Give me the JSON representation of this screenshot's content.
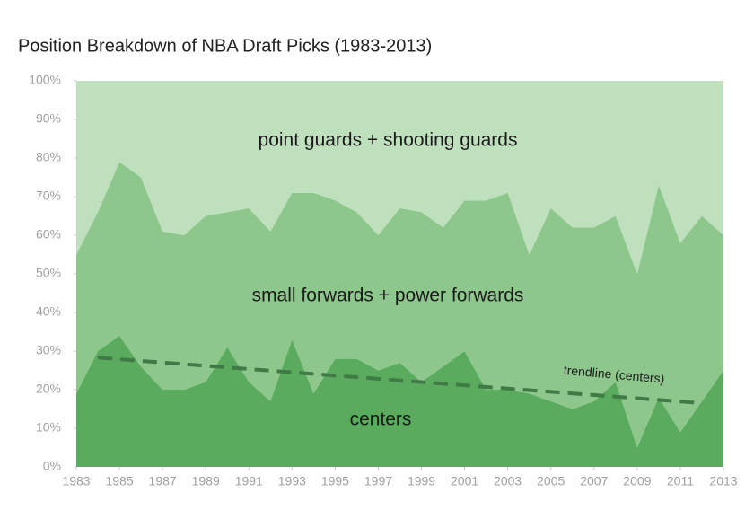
{
  "chart_data": {
    "type": "stacked-area",
    "title": "Position Breakdown of NBA Draft Picks (1983-2013)",
    "x": [
      1983,
      1984,
      1985,
      1986,
      1987,
      1988,
      1989,
      1990,
      1991,
      1992,
      1993,
      1994,
      1995,
      1996,
      1997,
      1998,
      1999,
      2000,
      2001,
      2002,
      2003,
      2004,
      2005,
      2006,
      2007,
      2008,
      2009,
      2010,
      2011,
      2012,
      2013
    ],
    "series": [
      {
        "name": "centers",
        "color": "#5aab5e",
        "values": [
          19,
          30,
          34,
          26,
          20,
          20,
          22,
          31,
          22,
          17,
          33,
          19,
          28,
          28,
          25,
          27,
          22,
          26,
          30,
          20,
          20,
          19,
          17,
          15,
          17,
          22,
          5,
          18,
          9,
          17,
          25
        ]
      },
      {
        "name": "small forwards + power forwards",
        "color": "#8dc78c",
        "values": [
          36,
          36,
          45,
          49,
          41,
          40,
          43,
          35,
          45,
          44,
          38,
          52,
          41,
          38,
          35,
          40,
          44,
          36,
          39,
          49,
          51,
          36,
          50,
          47,
          45,
          43,
          45,
          55,
          49,
          48,
          35
        ]
      },
      {
        "name": "point guards + shooting guards",
        "color": "#bfe0bd",
        "values": [
          45,
          34,
          21,
          25,
          39,
          40,
          35,
          34,
          33,
          39,
          29,
          29,
          31,
          34,
          40,
          33,
          34,
          38,
          31,
          31,
          29,
          45,
          33,
          38,
          38,
          35,
          50,
          27,
          42,
          35,
          40
        ]
      }
    ],
    "trendline": {
      "name": "trendline (centers)",
      "color": "#3f7a47",
      "x": [
        1984,
        2012
      ],
      "values": [
        28.3,
        16.5
      ]
    },
    "xlim": [
      1983,
      2013
    ],
    "xticks": [
      1983,
      1985,
      1987,
      1989,
      1991,
      1993,
      1995,
      1997,
      1999,
      2001,
      2003,
      2005,
      2007,
      2009,
      2011,
      2013
    ],
    "ylim": [
      0,
      100
    ],
    "yticks": [
      {
        "value": 0,
        "label": "0%"
      },
      {
        "value": 10,
        "label": "10%"
      },
      {
        "value": 20,
        "label": "20%"
      },
      {
        "value": 30,
        "label": "30%"
      },
      {
        "value": 40,
        "label": "40%"
      },
      {
        "value": 50,
        "label": "50%"
      },
      {
        "value": 60,
        "label": "60%"
      },
      {
        "value": 70,
        "label": "70%"
      },
      {
        "value": 80,
        "label": "80%"
      },
      {
        "value": 90,
        "label": "90%"
      },
      {
        "value": 100,
        "label": "100%"
      }
    ]
  }
}
